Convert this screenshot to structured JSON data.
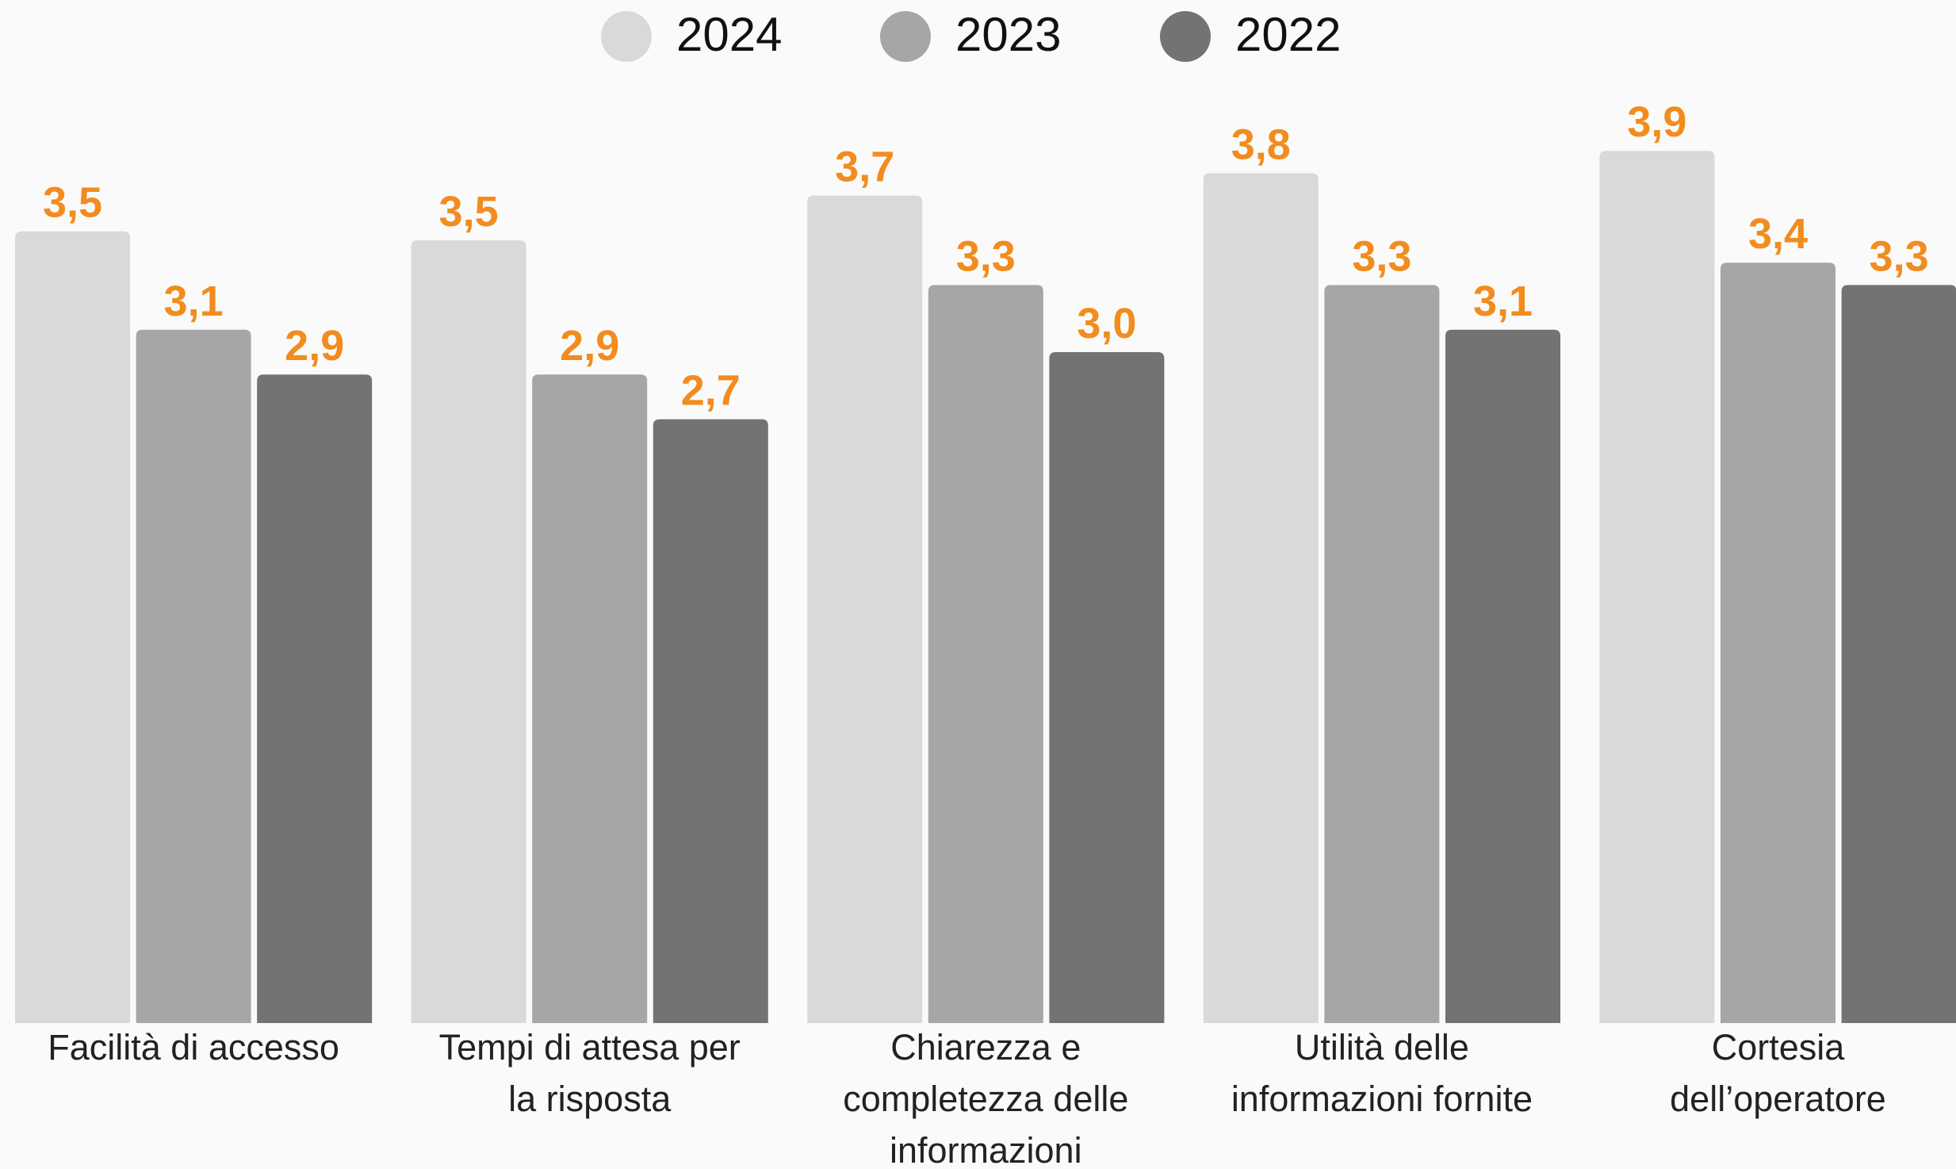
{
  "chart_data": {
    "type": "bar",
    "categories": [
      [
        "Facilità di accesso"
      ],
      [
        "Tempi di attesa per",
        "la risposta"
      ],
      [
        "Chiarezza e",
        "completezza delle",
        "informazioni"
      ],
      [
        "Utilità delle",
        "informazioni fornite"
      ],
      [
        "Cortesia",
        "dell’operatore"
      ]
    ],
    "series": [
      {
        "name": "2024",
        "color": "#d9d9d9",
        "values": [
          3.54,
          3.5,
          3.7,
          3.8,
          3.9
        ],
        "value_labels": [
          "3,5",
          "3,5",
          "3,7",
          "3,8",
          "3,9"
        ]
      },
      {
        "name": "2023",
        "color": "#a6a6a6",
        "values": [
          3.1,
          2.9,
          3.3,
          3.3,
          3.4
        ],
        "value_labels": [
          "3,1",
          "2,9",
          "3,3",
          "3,3",
          "3,4"
        ]
      },
      {
        "name": "2022",
        "color": "#737373",
        "values": [
          2.9,
          2.7,
          3.0,
          3.1,
          3.3
        ],
        "value_labels": [
          "2,9",
          "2,7",
          "3,0",
          "3,1",
          "3,3"
        ]
      }
    ],
    "legend": "top"
  }
}
